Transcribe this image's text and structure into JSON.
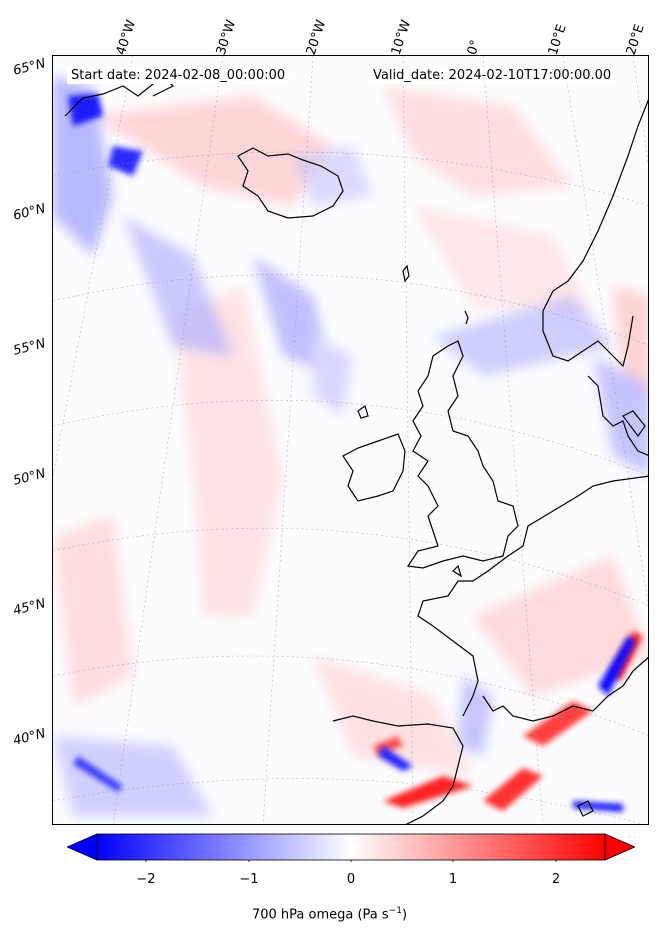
{
  "header": {
    "start_date": "Start date: 2024-02-08_00:00:00",
    "valid_date": "Valid_date: 2024-02-10T17:00:00.00"
  },
  "map": {
    "projection": "conic",
    "region": "North Atlantic / Western Europe",
    "longitude_labels": [
      "40°W",
      "30°W",
      "20°W",
      "10°W",
      "0°",
      "10°E",
      "20°E"
    ],
    "latitude_labels": [
      "65°N",
      "60°N",
      "55°N",
      "50°N",
      "45°N",
      "40°N"
    ],
    "gridlines": true,
    "coastlines": true
  },
  "colorbar": {
    "colormap": "bwr",
    "min": -2.5,
    "max": 2.5,
    "extend": "both",
    "ticks": [
      "−2",
      "−1",
      "0",
      "1",
      "2"
    ],
    "label": "700 hPa omega (Pa s",
    "label_superscript": "−1",
    "label_close": ")",
    "colors": {
      "negative": "#0000ff",
      "zero": "#ffffff",
      "positive": "#ff0000"
    }
  }
}
